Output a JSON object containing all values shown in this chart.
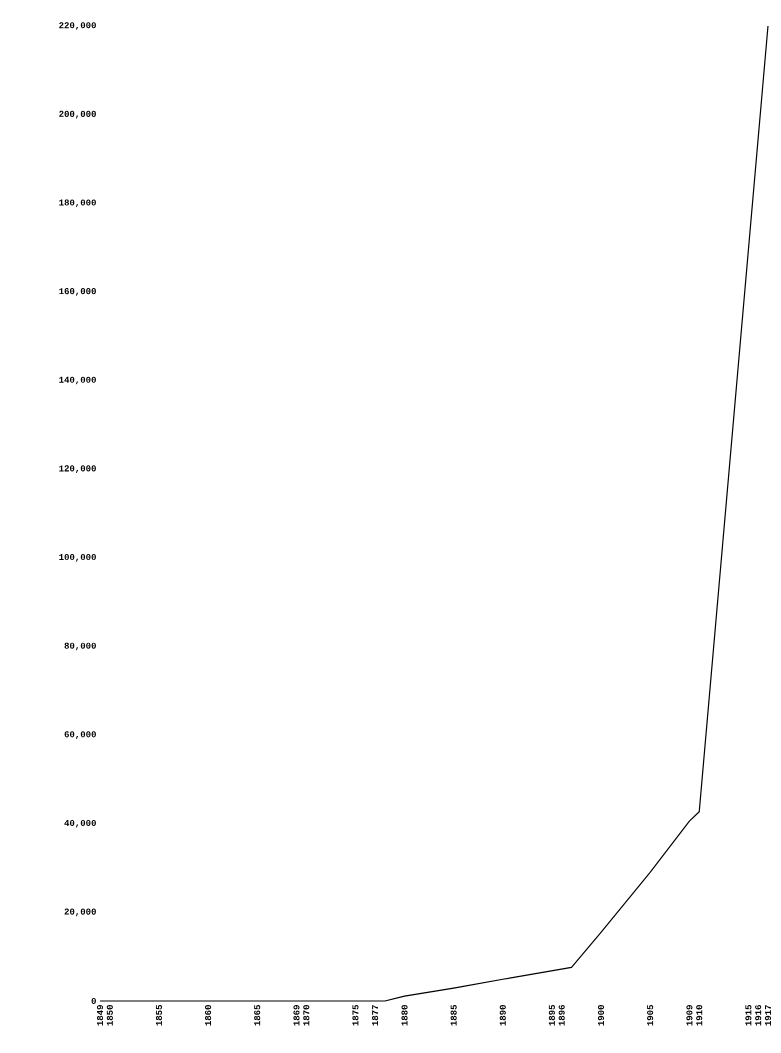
{
  "chart_data": {
    "type": "line",
    "x": [
      1849,
      1878,
      1880,
      1885,
      1890,
      1897,
      1900,
      1905,
      1909,
      1910,
      1917
    ],
    "values": [
      0,
      0,
      1100,
      2900,
      4900,
      7600,
      15500,
      29000,
      40600,
      42700,
      220000
    ],
    "color": "#000000",
    "marker": "none",
    "line_style": "solid",
    "grid": false,
    "xlim": [
      1849,
      1917
    ],
    "xticks": [
      1849,
      1850,
      1855,
      1860,
      1865,
      1869,
      1870,
      1875,
      1877,
      1880,
      1885,
      1890,
      1895,
      1896,
      1900,
      1905,
      1909,
      1910,
      1915,
      1916,
      1917
    ],
    "ylim": [
      0,
      220000
    ],
    "yticks": [
      0,
      {
        "value": 20000,
        "label": "20,000"
      },
      {
        "value": 40000,
        "label": "40,000"
      },
      {
        "value": 60000,
        "label": "60,000"
      },
      {
        "value": 80000,
        "label": "80,000"
      },
      {
        "value": 100000,
        "label": "100,000"
      },
      {
        "value": 120000,
        "label": "120,000"
      },
      {
        "value": 140000,
        "label": "140,000"
      },
      {
        "value": 160000,
        "label": "160,000"
      },
      {
        "value": 180000,
        "label": "180,000"
      },
      {
        "value": 200000,
        "label": "200,000"
      },
      {
        "value": 220000,
        "label": "220,000"
      }
    ]
  }
}
